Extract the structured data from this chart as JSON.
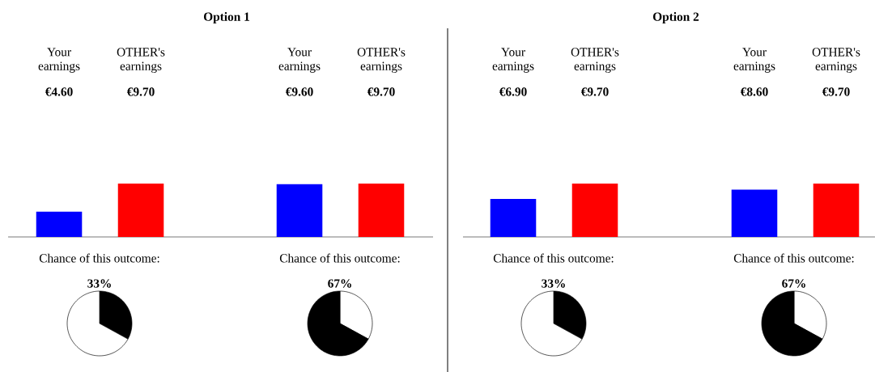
{
  "chart_data": [
    {
      "type": "bar",
      "title": "Option 1",
      "categories": [
        "Your earnings",
        "OTHER's earnings"
      ],
      "values": [
        4.6,
        9.7
      ],
      "value_labels": [
        "€4.60",
        "€9.70"
      ],
      "colors": [
        "#0000ff",
        "#ff0000"
      ]
    },
    {
      "type": "bar",
      "categories": [
        "Your earnings",
        "OTHER's earnings"
      ],
      "values": [
        9.6,
        9.7
      ],
      "value_labels": [
        "€9.60",
        "€9.70"
      ],
      "colors": [
        "#0000ff",
        "#ff0000"
      ]
    },
    {
      "type": "pie",
      "title": "Chance of this outcome:",
      "categories": [
        null,
        null
      ],
      "values": [
        33,
        67
      ],
      "value_labels": [
        "33%",
        null
      ],
      "colors": [
        "#000000",
        "#ffffff"
      ]
    },
    {
      "type": "pie",
      "title": "Chance of this outcome:",
      "categories": [
        null,
        null
      ],
      "values": [
        33,
        67
      ],
      "value_labels": [
        null,
        "67%"
      ],
      "colors": [
        "#ffffff",
        "#000000"
      ]
    },
    {
      "type": "bar",
      "title": "Option 2",
      "categories": [
        "Your earnings",
        "OTHER's earnings"
      ],
      "values": [
        6.9,
        9.7
      ],
      "value_labels": [
        "€6.90",
        "€9.70"
      ],
      "colors": [
        "#0000ff",
        "#ff0000"
      ]
    },
    {
      "type": "bar",
      "categories": [
        "Your earnings",
        "OTHER's earnings"
      ],
      "values": [
        8.6,
        9.7
      ],
      "value_labels": [
        "€8.60",
        "€9.70"
      ],
      "colors": [
        "#0000ff",
        "#ff0000"
      ]
    },
    {
      "type": "pie",
      "title": "Chance of this outcome:",
      "categories": [
        null,
        null
      ],
      "values": [
        33,
        67
      ],
      "value_labels": [
        "33%",
        null
      ],
      "colors": [
        "#000000",
        "#ffffff"
      ]
    },
    {
      "type": "pie",
      "title": "Chance of this outcome:",
      "categories": [
        null,
        null
      ],
      "values": [
        33,
        67
      ],
      "value_labels": [
        null,
        "67%"
      ],
      "colors": [
        "#ffffff",
        "#000000"
      ]
    }
  ]
}
